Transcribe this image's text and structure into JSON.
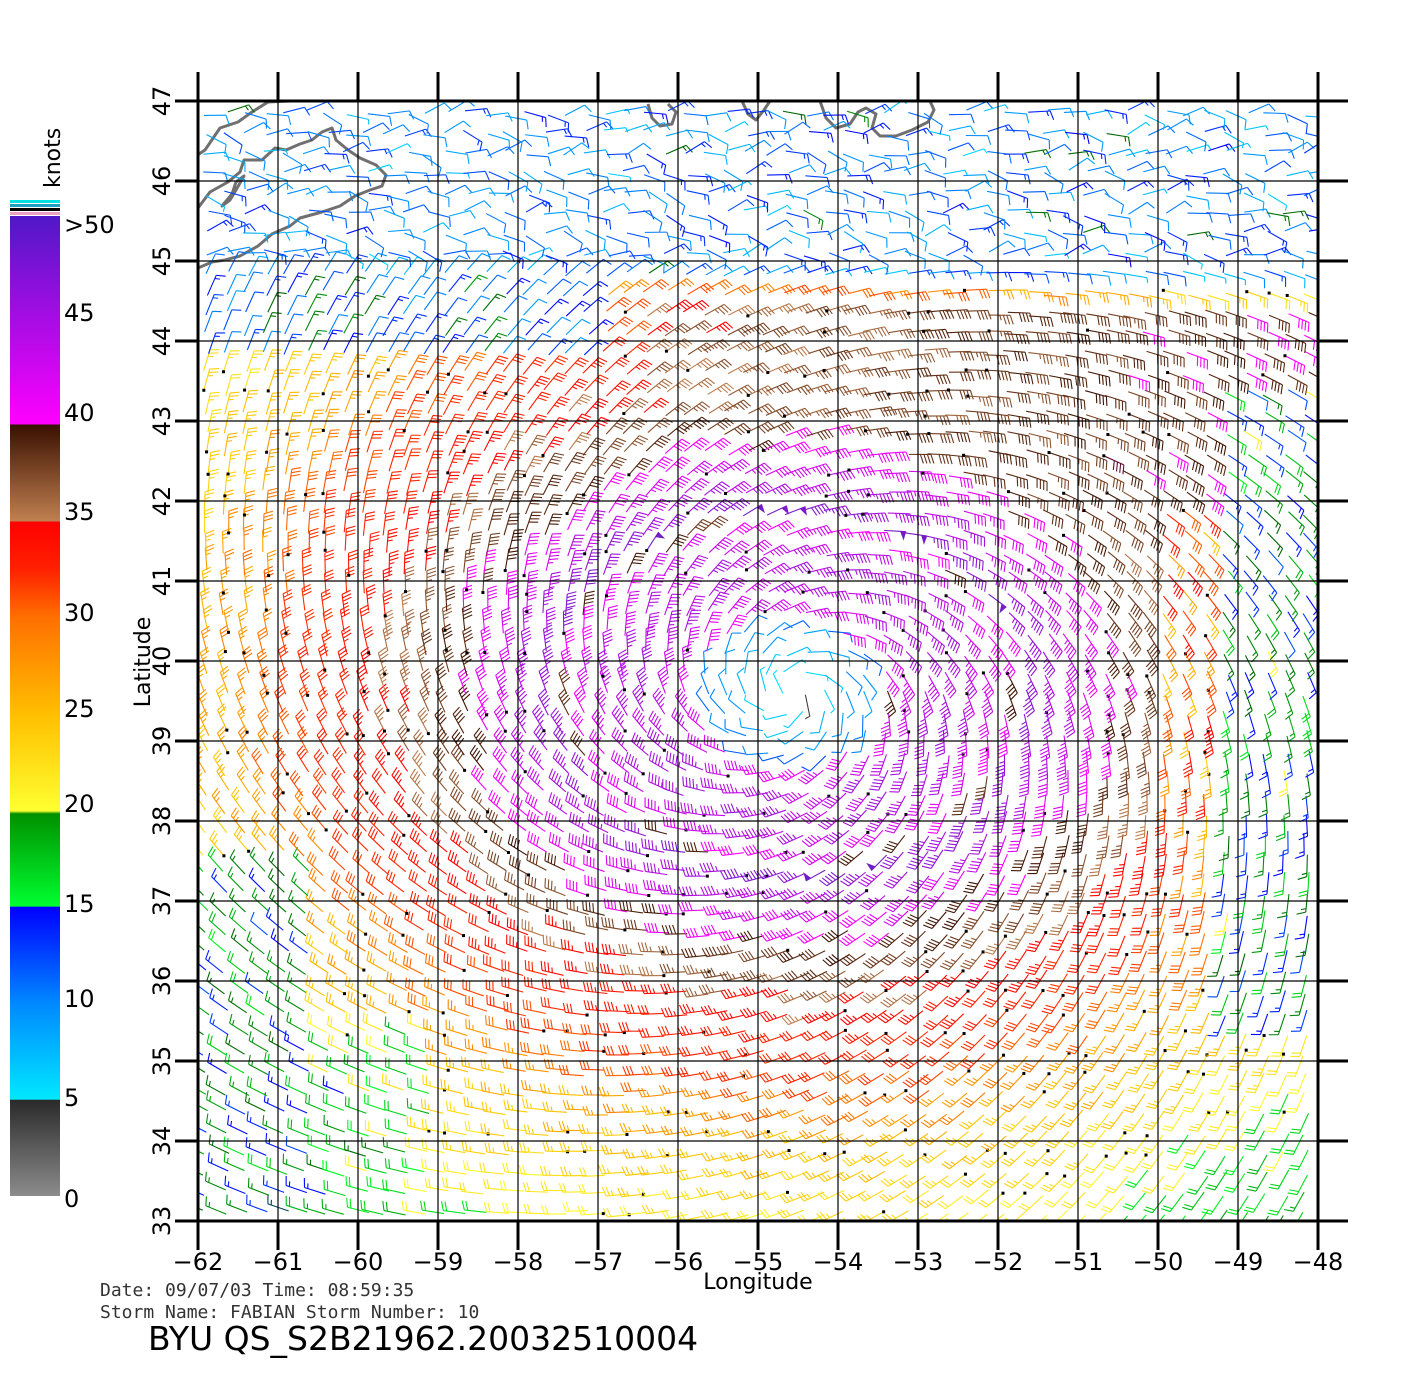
{
  "colorbar": {
    "unit_label": "knots",
    "labels": [
      ">50",
      "45",
      "40",
      "35",
      "30",
      "25",
      "20",
      "15",
      "10",
      "5",
      "0"
    ]
  },
  "axes": {
    "xlabel": "Longitude",
    "ylabel": "Latitude",
    "lon_ticks": [
      "−62",
      "−61",
      "−60",
      "−59",
      "−58",
      "−57",
      "−56",
      "−55",
      "−54",
      "−53",
      "−52",
      "−51",
      "−50",
      "−49",
      "−48"
    ],
    "lat_ticks": [
      "33",
      "34",
      "35",
      "36",
      "37",
      "38",
      "39",
      "40",
      "41",
      "42",
      "43",
      "44",
      "45",
      "46",
      "47"
    ]
  },
  "info": {
    "date_line": "Date: 09/07/03   Time: 08:59:35",
    "storm_line": "Storm Name: FABIAN   Storm Number: 10",
    "product_id": "BYU  QS_S2B21962.20032510004"
  },
  "map": {
    "lon_range": [
      -62,
      -48
    ],
    "lat_range": [
      33,
      47
    ],
    "storm_center": {
      "lon": -54.6,
      "lat": 39.6
    },
    "eye_calm_knots": 4,
    "land_color": "#707070",
    "speed_colors": [
      {
        "knots": 0,
        "color": "#8c8c8c"
      },
      {
        "knots": 5,
        "color": "#2a2a2a"
      },
      {
        "knots": 5.01,
        "color": "#00e8ff"
      },
      {
        "knots": 10,
        "color": "#0088ff"
      },
      {
        "knots": 15,
        "color": "#0000ff"
      },
      {
        "knots": 15.01,
        "color": "#006400"
      },
      {
        "knots": 20,
        "color": "#00ff20"
      },
      {
        "knots": 20.01,
        "color": "#ffff30"
      },
      {
        "knots": 25,
        "color": "#ffc000"
      },
      {
        "knots": 27.5,
        "color": "#ff8000"
      },
      {
        "knots": 30,
        "color": "#ff3000"
      },
      {
        "knots": 35,
        "color": "#ff0000"
      },
      {
        "knots": 35.01,
        "color": "#c08050"
      },
      {
        "knots": 40,
        "color": "#3a1000"
      },
      {
        "knots": 40.01,
        "color": "#ff00ff"
      },
      {
        "knots": 50,
        "color": "#6020c0"
      }
    ]
  }
}
